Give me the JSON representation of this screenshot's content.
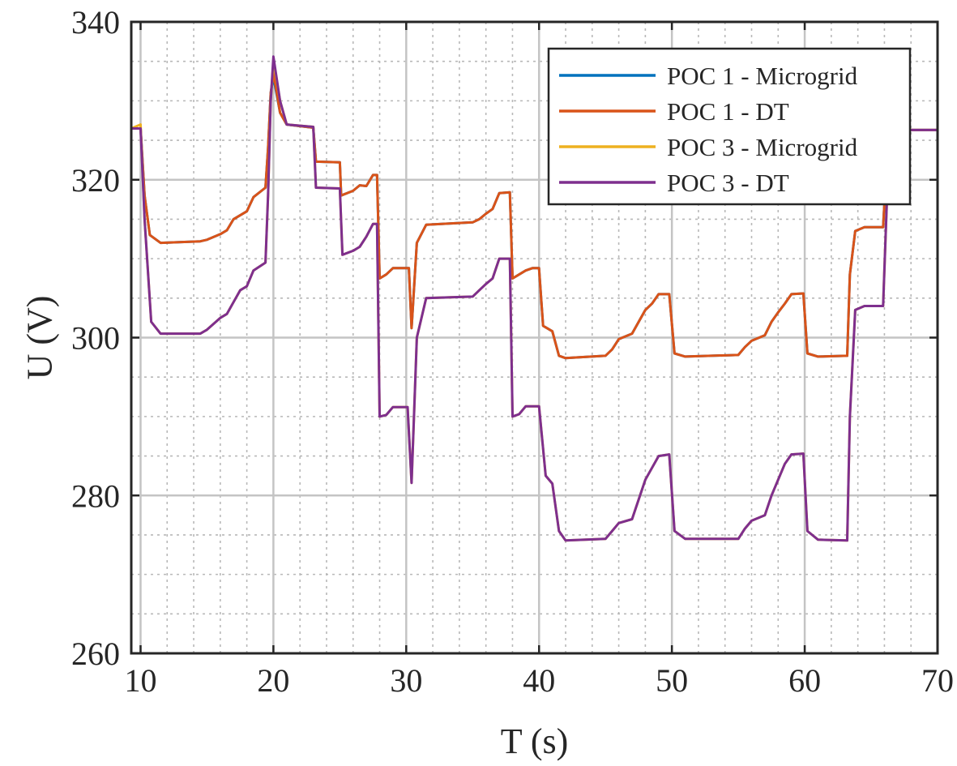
{
  "chart_data": {
    "type": "line",
    "title": "",
    "xlabel": "T (s)",
    "ylabel": "U (V)",
    "xlim": [
      9.3,
      70
    ],
    "ylim": [
      260,
      340
    ],
    "xticks": [
      10,
      20,
      30,
      40,
      50,
      60,
      70
    ],
    "yticks": [
      260,
      280,
      300,
      320,
      340
    ],
    "xtick_labels": [
      "10",
      "20",
      "30",
      "40",
      "50",
      "60",
      "70"
    ],
    "ytick_labels": [
      "260",
      "280",
      "300",
      "320",
      "340"
    ],
    "grid": {
      "major": true,
      "minor": true,
      "minor_x_step": 2,
      "minor_y_step": 5
    },
    "legend": "top-right",
    "series": [
      {
        "name": "POC 1 - Microgrid",
        "color": "#0072BD",
        "points": [
          [
            9.3,
            326.5
          ],
          [
            10,
            326.5
          ],
          [
            10.3,
            318
          ],
          [
            10.7,
            313
          ],
          [
            11.5,
            312
          ],
          [
            14.5,
            312.2
          ],
          [
            15,
            312.4
          ],
          [
            16,
            313.1
          ],
          [
            16.5,
            313.6
          ],
          [
            17,
            315
          ],
          [
            18,
            316
          ],
          [
            18.5,
            317.8
          ],
          [
            19.4,
            319
          ],
          [
            19.6,
            324
          ],
          [
            19.8,
            331
          ],
          [
            20,
            333
          ],
          [
            20.5,
            328.5
          ],
          [
            21,
            327
          ],
          [
            23,
            326.6
          ],
          [
            23.2,
            322.3
          ],
          [
            25,
            322.2
          ],
          [
            25.1,
            318
          ],
          [
            26,
            318.6
          ],
          [
            26.5,
            319.3
          ],
          [
            27,
            319.2
          ],
          [
            27.5,
            320.6
          ],
          [
            27.8,
            320.6
          ],
          [
            28,
            307.5
          ],
          [
            28.5,
            308
          ],
          [
            29,
            308.8
          ],
          [
            30.2,
            308.8
          ],
          [
            30.4,
            301.2
          ],
          [
            30.8,
            312
          ],
          [
            31.5,
            314.3
          ],
          [
            35,
            314.6
          ],
          [
            35.5,
            315
          ],
          [
            36,
            315.7
          ],
          [
            36.5,
            316.3
          ],
          [
            37,
            318.3
          ],
          [
            37.8,
            318.4
          ],
          [
            38,
            307.5
          ],
          [
            39,
            308.5
          ],
          [
            39.5,
            308.8
          ],
          [
            40,
            308.8
          ],
          [
            40.3,
            301.5
          ],
          [
            41,
            300.8
          ],
          [
            41.5,
            297.7
          ],
          [
            42,
            297.4
          ],
          [
            45,
            297.7
          ],
          [
            45.5,
            298.5
          ],
          [
            46,
            299.8
          ],
          [
            47,
            300.5
          ],
          [
            47.5,
            302
          ],
          [
            48,
            303.5
          ],
          [
            48.5,
            304.3
          ],
          [
            49,
            305.5
          ],
          [
            49.8,
            305.5
          ],
          [
            50.2,
            298
          ],
          [
            51,
            297.6
          ],
          [
            55,
            297.8
          ],
          [
            55.5,
            298.8
          ],
          [
            56,
            299.6
          ],
          [
            57,
            300.3
          ],
          [
            57.5,
            302
          ],
          [
            58,
            303.2
          ],
          [
            58.5,
            304.3
          ],
          [
            59,
            305.5
          ],
          [
            59.9,
            305.6
          ],
          [
            60.2,
            298
          ],
          [
            61,
            297.6
          ],
          [
            63.2,
            297.7
          ],
          [
            63.4,
            308
          ],
          [
            63.8,
            313.5
          ],
          [
            64.5,
            314
          ],
          [
            65.9,
            314
          ],
          [
            66.2,
            323
          ],
          [
            66.5,
            326.3
          ],
          [
            70,
            326.3
          ]
        ]
      },
      {
        "name": "POC 1 - DT",
        "color": "#D95319",
        "points": [
          [
            9.3,
            326.5
          ],
          [
            10,
            326.5
          ],
          [
            10.3,
            318
          ],
          [
            10.7,
            313
          ],
          [
            11.5,
            312
          ],
          [
            14.5,
            312.2
          ],
          [
            15,
            312.4
          ],
          [
            16,
            313.1
          ],
          [
            16.5,
            313.6
          ],
          [
            17,
            315
          ],
          [
            18,
            316
          ],
          [
            18.5,
            317.8
          ],
          [
            19.4,
            319
          ],
          [
            19.6,
            324
          ],
          [
            19.8,
            331
          ],
          [
            20,
            333.5
          ],
          [
            20.5,
            328.5
          ],
          [
            21,
            327
          ],
          [
            23,
            326.6
          ],
          [
            23.2,
            322.3
          ],
          [
            25,
            322.2
          ],
          [
            25.1,
            318
          ],
          [
            26,
            318.6
          ],
          [
            26.5,
            319.3
          ],
          [
            27,
            319.2
          ],
          [
            27.5,
            320.6
          ],
          [
            27.8,
            320.6
          ],
          [
            28,
            307.5
          ],
          [
            28.5,
            308
          ],
          [
            29,
            308.8
          ],
          [
            30.2,
            308.8
          ],
          [
            30.4,
            301.2
          ],
          [
            30.8,
            312
          ],
          [
            31.5,
            314.3
          ],
          [
            35,
            314.6
          ],
          [
            35.5,
            315
          ],
          [
            36,
            315.7
          ],
          [
            36.5,
            316.3
          ],
          [
            37,
            318.3
          ],
          [
            37.8,
            318.4
          ],
          [
            38,
            307.5
          ],
          [
            39,
            308.5
          ],
          [
            39.5,
            308.8
          ],
          [
            40,
            308.8
          ],
          [
            40.3,
            301.5
          ],
          [
            41,
            300.8
          ],
          [
            41.5,
            297.7
          ],
          [
            42,
            297.4
          ],
          [
            45,
            297.7
          ],
          [
            45.5,
            298.5
          ],
          [
            46,
            299.8
          ],
          [
            47,
            300.5
          ],
          [
            47.5,
            302
          ],
          [
            48,
            303.5
          ],
          [
            48.5,
            304.3
          ],
          [
            49,
            305.5
          ],
          [
            49.8,
            305.5
          ],
          [
            50.2,
            298
          ],
          [
            51,
            297.6
          ],
          [
            55,
            297.8
          ],
          [
            55.5,
            298.8
          ],
          [
            56,
            299.6
          ],
          [
            57,
            300.3
          ],
          [
            57.5,
            302
          ],
          [
            58,
            303.2
          ],
          [
            58.5,
            304.3
          ],
          [
            59,
            305.5
          ],
          [
            59.9,
            305.6
          ],
          [
            60.2,
            298
          ],
          [
            61,
            297.6
          ],
          [
            63.2,
            297.7
          ],
          [
            63.4,
            308
          ],
          [
            63.8,
            313.5
          ],
          [
            64.5,
            314
          ],
          [
            65.9,
            314
          ],
          [
            66.2,
            323
          ],
          [
            66.5,
            326.3
          ],
          [
            70,
            326.3
          ]
        ]
      },
      {
        "name": "POC 3 - Microgrid",
        "color": "#EDB120",
        "points": [
          [
            9.3,
            326.5
          ],
          [
            10,
            327
          ],
          [
            10.3,
            315
          ],
          [
            10.8,
            302
          ],
          [
            11.5,
            300.5
          ],
          [
            14.5,
            300.5
          ],
          [
            15,
            301
          ],
          [
            16,
            302.5
          ],
          [
            16.5,
            303
          ],
          [
            17,
            304.5
          ],
          [
            17.5,
            306
          ],
          [
            18,
            306.5
          ],
          [
            18.5,
            308.5
          ],
          [
            19.4,
            309.5
          ],
          [
            19.6,
            318
          ],
          [
            19.8,
            330
          ],
          [
            20,
            335
          ],
          [
            20.5,
            330
          ],
          [
            21,
            327
          ],
          [
            23,
            326.7
          ],
          [
            23.2,
            319
          ],
          [
            25,
            318.9
          ],
          [
            25.2,
            310.5
          ],
          [
            26,
            311
          ],
          [
            26.5,
            311.5
          ],
          [
            27,
            312.8
          ],
          [
            27.5,
            314.4
          ],
          [
            27.8,
            314.4
          ],
          [
            28,
            290
          ],
          [
            28.5,
            290.2
          ],
          [
            29,
            291.2
          ],
          [
            30.1,
            291.2
          ],
          [
            30.4,
            281.6
          ],
          [
            30.8,
            300
          ],
          [
            31.5,
            305
          ],
          [
            35,
            305.2
          ],
          [
            35.5,
            306
          ],
          [
            36,
            306.8
          ],
          [
            36.5,
            307.5
          ],
          [
            37,
            310
          ],
          [
            37.8,
            310
          ],
          [
            38,
            290
          ],
          [
            38.5,
            290.3
          ],
          [
            39,
            291.3
          ],
          [
            40,
            291.3
          ],
          [
            40.5,
            282.5
          ],
          [
            41,
            281.5
          ],
          [
            41.5,
            275.5
          ],
          [
            42,
            274.3
          ],
          [
            45,
            274.5
          ],
          [
            45.5,
            275.5
          ],
          [
            46,
            276.5
          ],
          [
            47,
            277
          ],
          [
            47.5,
            279.5
          ],
          [
            48,
            282
          ],
          [
            48.5,
            283.5
          ],
          [
            49,
            285
          ],
          [
            49.8,
            285.2
          ],
          [
            50.2,
            275.5
          ],
          [
            51,
            274.5
          ],
          [
            55,
            274.5
          ],
          [
            55.5,
            275.8
          ],
          [
            56,
            276.8
          ],
          [
            57,
            277.5
          ],
          [
            57.5,
            280
          ],
          [
            58,
            282
          ],
          [
            58.5,
            284
          ],
          [
            59,
            285.2
          ],
          [
            59.9,
            285.3
          ],
          [
            60.2,
            275.5
          ],
          [
            61,
            274.4
          ],
          [
            63.2,
            274.3
          ],
          [
            63.4,
            290
          ],
          [
            63.8,
            303.5
          ],
          [
            64.5,
            304
          ],
          [
            65.9,
            304
          ],
          [
            66.2,
            318
          ],
          [
            66.5,
            326.3
          ],
          [
            70,
            326.3
          ]
        ]
      },
      {
        "name": "POC 3 - DT",
        "color": "#7E2F8E",
        "points": [
          [
            9.3,
            326.5
          ],
          [
            10,
            326.5
          ],
          [
            10.3,
            315
          ],
          [
            10.8,
            302
          ],
          [
            11.5,
            300.5
          ],
          [
            14.5,
            300.5
          ],
          [
            15,
            301
          ],
          [
            16,
            302.5
          ],
          [
            16.5,
            303
          ],
          [
            17,
            304.5
          ],
          [
            17.5,
            306
          ],
          [
            18,
            306.5
          ],
          [
            18.5,
            308.5
          ],
          [
            19.4,
            309.5
          ],
          [
            19.6,
            318
          ],
          [
            19.8,
            330
          ],
          [
            20,
            335.6
          ],
          [
            20.5,
            330
          ],
          [
            21,
            327
          ],
          [
            23,
            326.7
          ],
          [
            23.2,
            319
          ],
          [
            25,
            318.9
          ],
          [
            25.2,
            310.5
          ],
          [
            26,
            311
          ],
          [
            26.5,
            311.5
          ],
          [
            27,
            312.8
          ],
          [
            27.5,
            314.4
          ],
          [
            27.8,
            314.4
          ],
          [
            28,
            290
          ],
          [
            28.5,
            290.2
          ],
          [
            29,
            291.2
          ],
          [
            30.1,
            291.2
          ],
          [
            30.4,
            281.6
          ],
          [
            30.8,
            300
          ],
          [
            31.5,
            305
          ],
          [
            35,
            305.2
          ],
          [
            35.5,
            306
          ],
          [
            36,
            306.8
          ],
          [
            36.5,
            307.5
          ],
          [
            37,
            310
          ],
          [
            37.8,
            310
          ],
          [
            38,
            290
          ],
          [
            38.5,
            290.3
          ],
          [
            39,
            291.3
          ],
          [
            40,
            291.3
          ],
          [
            40.5,
            282.5
          ],
          [
            41,
            281.5
          ],
          [
            41.5,
            275.5
          ],
          [
            42,
            274.3
          ],
          [
            45,
            274.5
          ],
          [
            45.5,
            275.5
          ],
          [
            46,
            276.5
          ],
          [
            47,
            277
          ],
          [
            47.5,
            279.5
          ],
          [
            48,
            282
          ],
          [
            48.5,
            283.5
          ],
          [
            49,
            285
          ],
          [
            49.8,
            285.2
          ],
          [
            50.2,
            275.5
          ],
          [
            51,
            274.5
          ],
          [
            55,
            274.5
          ],
          [
            55.5,
            275.8
          ],
          [
            56,
            276.8
          ],
          [
            57,
            277.5
          ],
          [
            57.5,
            280
          ],
          [
            58,
            282
          ],
          [
            58.5,
            284
          ],
          [
            59,
            285.2
          ],
          [
            59.9,
            285.3
          ],
          [
            60.2,
            275.5
          ],
          [
            61,
            274.4
          ],
          [
            63.2,
            274.3
          ],
          [
            63.4,
            290
          ],
          [
            63.8,
            303.5
          ],
          [
            64.5,
            304
          ],
          [
            65.9,
            304
          ],
          [
            66.2,
            318
          ],
          [
            66.5,
            326.3
          ],
          [
            70,
            326.3
          ]
        ]
      }
    ]
  }
}
